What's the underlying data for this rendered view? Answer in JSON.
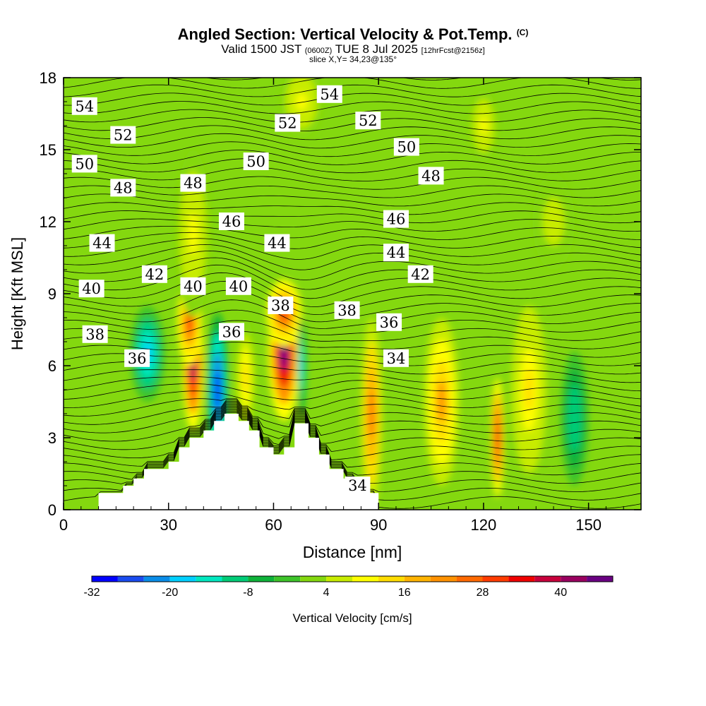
{
  "header": {
    "title": "Angled Section: Vertical Velocity & Pot.Temp.",
    "title_mark": "(C)",
    "valid_prefix": "Valid 1500 JST",
    "valid_zulu": "(0600Z)",
    "valid_suffix": "TUE 8 Jul 2025",
    "forecast": "[12hrFcst@2156z]",
    "slice": "slice X,Y= 34,23@135°"
  },
  "chart_data": {
    "type": "heatmap",
    "xlabel": "Distance [nm]",
    "ylabel": "Height [Kft MSL]",
    "xlim": [
      0,
      165
    ],
    "ylim": [
      0,
      18
    ],
    "xticks": [
      0,
      30,
      60,
      90,
      120,
      150
    ],
    "yticks": [
      0,
      3,
      6,
      9,
      12,
      15,
      18
    ],
    "colorbar": {
      "label": "Vertical Velocity [cm/s]",
      "tick_labels": [
        "-32",
        "-20",
        "-8",
        "4",
        "16",
        "28",
        "40"
      ],
      "tick_values": [
        -32,
        -20,
        -8,
        4,
        16,
        28,
        40
      ],
      "min": -32,
      "max": 48,
      "step": 4,
      "colors": [
        "#0000ff",
        "#1a4cf0",
        "#0a8de8",
        "#00d0ff",
        "#00e8c0",
        "#00cc77",
        "#0fb33a",
        "#3ec42a",
        "#84d80f",
        "#c8ec00",
        "#ffff00",
        "#ffdd00",
        "#ffb400",
        "#ff9200",
        "#ff6a00",
        "#ff3c00",
        "#f00000",
        "#c8003c",
        "#9a0060",
        "#6a0082"
      ]
    },
    "terrain_nm_kft": [
      [
        10,
        0
      ],
      [
        10,
        0.7
      ],
      [
        17,
        0.7
      ],
      [
        17,
        1.0
      ],
      [
        20,
        1.0
      ],
      [
        20,
        1.3
      ],
      [
        23,
        1.3
      ],
      [
        23,
        1.7
      ],
      [
        30,
        1.7
      ],
      [
        30,
        2.0
      ],
      [
        33,
        2.0
      ],
      [
        33,
        2.6
      ],
      [
        36,
        2.6
      ],
      [
        36,
        3.0
      ],
      [
        40,
        3.0
      ],
      [
        40,
        3.3
      ],
      [
        43,
        3.3
      ],
      [
        43,
        3.7
      ],
      [
        46,
        3.7
      ],
      [
        46,
        4.0
      ],
      [
        50,
        4.0
      ],
      [
        50,
        3.7
      ],
      [
        53,
        3.7
      ],
      [
        53,
        3.3
      ],
      [
        56,
        3.3
      ],
      [
        56,
        2.6
      ],
      [
        60,
        2.6
      ],
      [
        60,
        2.3
      ],
      [
        63,
        2.3
      ],
      [
        63,
        2.6
      ],
      [
        66,
        2.6
      ],
      [
        66,
        3.6
      ],
      [
        70,
        3.6
      ],
      [
        70,
        3.0
      ],
      [
        73,
        3.0
      ],
      [
        73,
        2.3
      ],
      [
        76,
        2.3
      ],
      [
        76,
        1.7
      ],
      [
        80,
        1.7
      ],
      [
        80,
        1.3
      ],
      [
        83,
        1.3
      ],
      [
        83,
        1.0
      ],
      [
        86,
        1.0
      ],
      [
        86,
        0.7
      ],
      [
        90,
        0.7
      ],
      [
        90,
        0
      ]
    ],
    "velocity_cells": [
      {
        "x": 37,
        "y": 6.0,
        "rx": 3.0,
        "ry": 2.7,
        "v": 40
      },
      {
        "x": 44,
        "y": 5.0,
        "rx": 3.0,
        "ry": 3.2,
        "v": -32
      },
      {
        "x": 36,
        "y": 7.8,
        "rx": 3.5,
        "ry": 1.8,
        "v": 30
      },
      {
        "x": 63,
        "y": 6.5,
        "rx": 4.5,
        "ry": 2.8,
        "v": 44
      },
      {
        "x": 63,
        "y": 8.2,
        "rx": 5.0,
        "ry": 1.4,
        "v": 30
      },
      {
        "x": 68,
        "y": 6.0,
        "rx": 1.2,
        "ry": 2.0,
        "v": -20
      },
      {
        "x": 52,
        "y": 5.5,
        "rx": 3.0,
        "ry": 2.5,
        "v": 12
      },
      {
        "x": 24,
        "y": 6.5,
        "rx": 5.0,
        "ry": 2.0,
        "v": -18
      },
      {
        "x": 88,
        "y": 4.0,
        "rx": 3.0,
        "ry": 4.0,
        "v": 24
      },
      {
        "x": 108,
        "y": 4.5,
        "rx": 5.0,
        "ry": 3.5,
        "v": 20
      },
      {
        "x": 124,
        "y": 3.0,
        "rx": 1.8,
        "ry": 2.5,
        "v": 32
      },
      {
        "x": 133,
        "y": 5.0,
        "rx": 5.0,
        "ry": 3.5,
        "v": 14
      },
      {
        "x": 146,
        "y": 3.8,
        "rx": 4.0,
        "ry": 2.8,
        "v": -12
      },
      {
        "x": 37,
        "y": 11.5,
        "rx": 5.0,
        "ry": 3.5,
        "v": 8
      },
      {
        "x": 68,
        "y": 17.0,
        "rx": 6.0,
        "ry": 1.5,
        "v": 8
      },
      {
        "x": 120,
        "y": 16.0,
        "rx": 4.0,
        "ry": 1.5,
        "v": 8
      },
      {
        "x": 140,
        "y": 12.0,
        "rx": 6.0,
        "ry": 2.0,
        "v": 6
      }
    ],
    "contour_labels": [
      {
        "text": "54",
        "x": 6,
        "y": 16.8
      },
      {
        "text": "54",
        "x": 76,
        "y": 17.3
      },
      {
        "text": "52",
        "x": 17,
        "y": 15.6
      },
      {
        "text": "52",
        "x": 64,
        "y": 16.1
      },
      {
        "text": "52",
        "x": 87,
        "y": 16.2
      },
      {
        "text": "50",
        "x": 6,
        "y": 14.4
      },
      {
        "text": "50",
        "x": 55,
        "y": 14.5
      },
      {
        "text": "50",
        "x": 98,
        "y": 15.1
      },
      {
        "text": "48",
        "x": 17,
        "y": 13.4
      },
      {
        "text": "48",
        "x": 37,
        "y": 13.6
      },
      {
        "text": "48",
        "x": 105,
        "y": 13.9
      },
      {
        "text": "46",
        "x": 48,
        "y": 12.0
      },
      {
        "text": "46",
        "x": 95,
        "y": 12.1
      },
      {
        "text": "44",
        "x": 11,
        "y": 11.1
      },
      {
        "text": "44",
        "x": 61,
        "y": 11.1
      },
      {
        "text": "44",
        "x": 95,
        "y": 10.7
      },
      {
        "text": "42",
        "x": 26,
        "y": 9.8
      },
      {
        "text": "42",
        "x": 102,
        "y": 9.8
      },
      {
        "text": "40",
        "x": 8,
        "y": 9.2
      },
      {
        "text": "40",
        "x": 37,
        "y": 9.3
      },
      {
        "text": "40",
        "x": 50,
        "y": 9.3
      },
      {
        "text": "38",
        "x": 9,
        "y": 7.3
      },
      {
        "text": "38",
        "x": 62,
        "y": 8.5
      },
      {
        "text": "38",
        "x": 81,
        "y": 8.3
      },
      {
        "text": "36",
        "x": 21,
        "y": 6.3
      },
      {
        "text": "36",
        "x": 48,
        "y": 7.4
      },
      {
        "text": "36",
        "x": 93,
        "y": 7.8
      },
      {
        "text": "34",
        "x": 95,
        "y": 6.3
      },
      {
        "text": "34",
        "x": 84,
        "y": 1.0
      }
    ]
  }
}
